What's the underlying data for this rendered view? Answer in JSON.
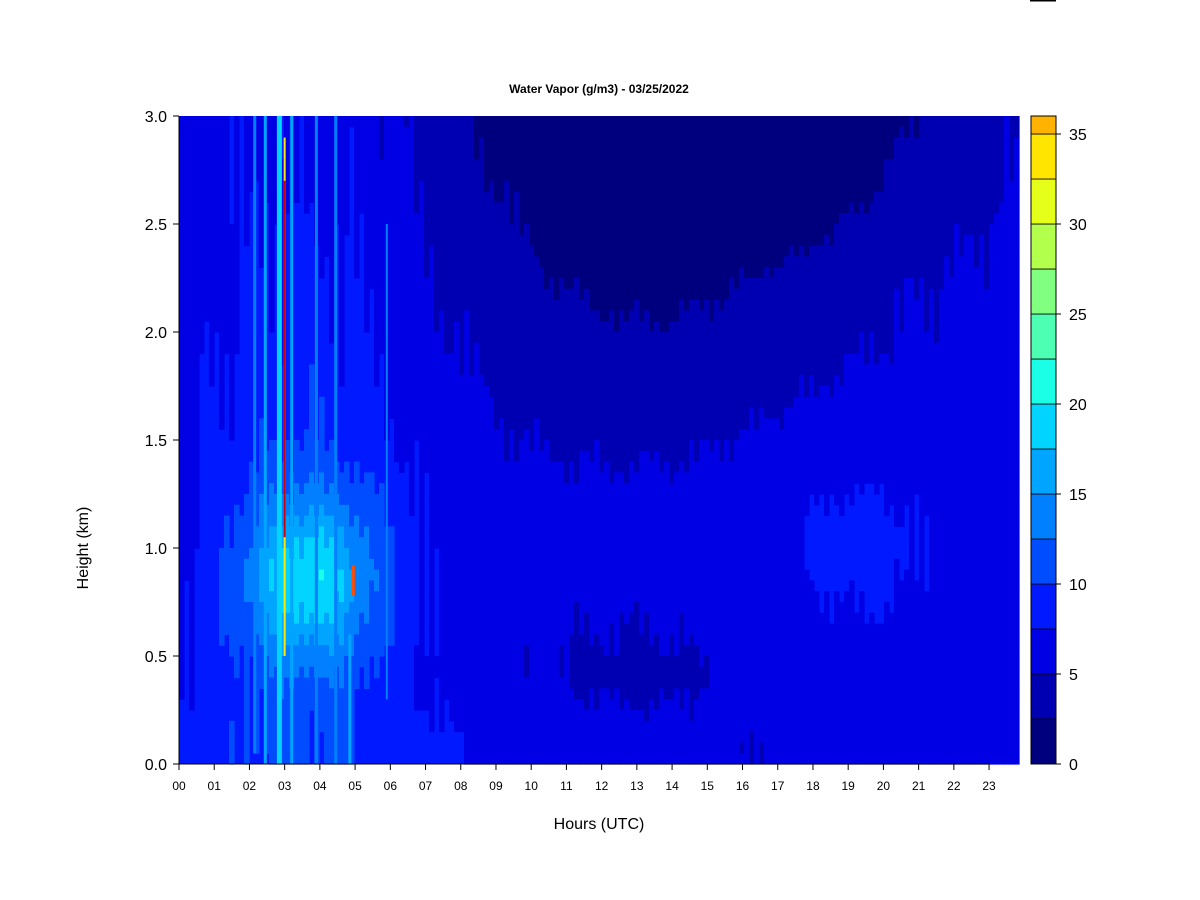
{
  "chart_data": {
    "type": "heatmap",
    "title": "Water Vapor (g/m3) - 03/25/2022",
    "xlabel": "Hours (UTC)",
    "ylabel": "Height (km)",
    "xlim": [
      0,
      23.85
    ],
    "ylim": [
      0,
      3.0
    ],
    "x_tick_labels": [
      "00",
      "01",
      "02",
      "03",
      "04",
      "05",
      "06",
      "07",
      "08",
      "09",
      "10",
      "11",
      "12",
      "13",
      "14",
      "15",
      "16",
      "17",
      "18",
      "19",
      "20",
      "21",
      "22",
      "23"
    ],
    "y_ticks": [
      0.0,
      0.5,
      1.0,
      1.5,
      2.0,
      2.5,
      3.0
    ],
    "y_tick_labels": [
      "0.0",
      "0.5",
      "1.0",
      "1.5",
      "2.0",
      "2.5",
      "3.0"
    ],
    "colorbar": {
      "min": 0,
      "max": 36,
      "step": 2.5,
      "tick_values": [
        0,
        5,
        10,
        15,
        20,
        25,
        30,
        35
      ],
      "tick_labels": [
        "0",
        "5",
        "10",
        "15",
        "20",
        "25",
        "30",
        "35"
      ],
      "colors": [
        "#00007F",
        "#0000B2",
        "#0000E5",
        "#0019FF",
        "#004CFF",
        "#0080FF",
        "#00A5FF",
        "#00D4FF",
        "#1AFFE5",
        "#4CFFB2",
        "#80FF80",
        "#B2FF4C",
        "#E5FF1A",
        "#FFE500",
        "#FFB200",
        "#FF8000",
        "#FF4C00",
        "#FF1900",
        "#CC0000",
        "#7F0000"
      ]
    },
    "grid": false,
    "legend": "right colorbar"
  }
}
